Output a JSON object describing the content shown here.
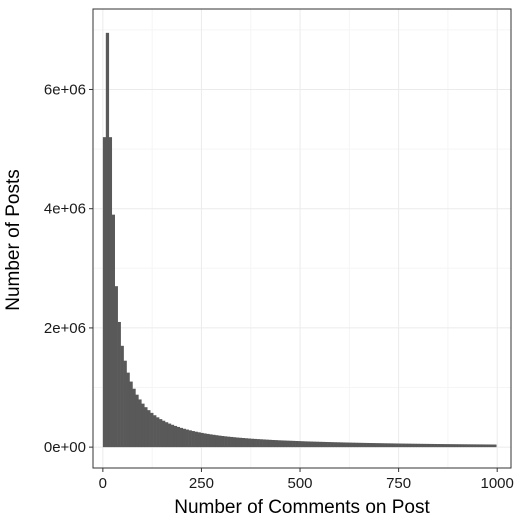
{
  "chart_data": {
    "type": "bar",
    "title": "",
    "xlabel": "Number of Comments on Post",
    "ylabel": "Number of Posts",
    "xlim": [
      -25,
      1035
    ],
    "ylim": [
      -350000,
      7350000
    ],
    "x_ticks": [
      0,
      250,
      500,
      750,
      1000
    ],
    "x_tick_labels": [
      "0",
      "250",
      "500",
      "750",
      "1000"
    ],
    "y_ticks": [
      0,
      2000000,
      4000000,
      6000000
    ],
    "y_tick_labels": [
      "0e+00",
      "2e+06",
      "4e+06",
      "6e+06"
    ],
    "bin_width": 7.5,
    "x": [
      3.75,
      11.25,
      18.75,
      26.25,
      33.75,
      41.25,
      48.75,
      56.25,
      63.75,
      71.25,
      78.75,
      86.25,
      93.75,
      101.25,
      108.75,
      116.25,
      123.75,
      131.25,
      138.75,
      146.25,
      153.75,
      161.25,
      168.75,
      176.25,
      183.75,
      191.25,
      198.75,
      206.25,
      213.75,
      221.25,
      228.75,
      236.25,
      243.75,
      251.25,
      258.75,
      266.25,
      273.75,
      281.25,
      288.75,
      296.25,
      303.75,
      311.25,
      318.75,
      326.25,
      333.75,
      341.25,
      348.75,
      356.25,
      363.75,
      371.25,
      378.75,
      386.25,
      393.75,
      401.25,
      408.75,
      416.25,
      423.75,
      431.25,
      438.75,
      446.25,
      453.75,
      461.25,
      468.75,
      476.25,
      483.75,
      491.25,
      498.75,
      506.25,
      513.75,
      521.25,
      528.75,
      536.25,
      543.75,
      551.25,
      558.75,
      566.25,
      573.75,
      581.25,
      588.75,
      596.25,
      603.75,
      611.25,
      618.75,
      626.25,
      633.75,
      641.25,
      648.75,
      656.25,
      663.75,
      671.25,
      678.75,
      686.25,
      693.75,
      701.25,
      708.75,
      716.25,
      723.75,
      731.25,
      738.75,
      746.25,
      753.75,
      761.25,
      768.75,
      776.25,
      783.75,
      791.25,
      798.75,
      806.25,
      813.75,
      821.25,
      828.75,
      836.25,
      843.75,
      851.25,
      858.75,
      866.25,
      873.75,
      881.25,
      888.75,
      896.25,
      903.75,
      911.25,
      918.75,
      926.25,
      933.75,
      941.25,
      948.75,
      956.25,
      963.75,
      971.25,
      978.75,
      986.25,
      993.75
    ],
    "values": [
      5200000,
      6950000,
      5200000,
      3900000,
      2700000,
      2100000,
      1700000,
      1450000,
      1250000,
      1100000,
      980000,
      880000,
      800000,
      730000,
      670000,
      620000,
      575000,
      535000,
      500000,
      470000,
      443000,
      418000,
      395000,
      375000,
      356000,
      339000,
      323000,
      308000,
      295000,
      282000,
      270000,
      259000,
      249000,
      239000,
      230000,
      222000,
      214000,
      207000,
      200000,
      193000,
      187000,
      181000,
      176000,
      171000,
      166000,
      161000,
      157000,
      153000,
      149000,
      145000,
      141000,
      138000,
      135000,
      132000,
      129000,
      126000,
      123000,
      120000,
      118000,
      115000,
      113000,
      111000,
      109000,
      107000,
      105000,
      103000,
      101000,
      99000,
      97000,
      95500,
      94000,
      92500,
      91000,
      89500,
      88000,
      86600,
      85200,
      83800,
      82500,
      81200,
      80000,
      78800,
      77600,
      76400,
      75300,
      74200,
      73100,
      72100,
      71100,
      70100,
      69100,
      68200,
      67300,
      66400,
      65500,
      64600,
      63800,
      63000,
      62200,
      61400,
      60600,
      59900,
      59200,
      58500,
      57800,
      57100,
      56400,
      55800,
      55200,
      54600,
      54000,
      53400,
      52800,
      52200,
      51700,
      51200,
      50700,
      50200,
      49700,
      49200,
      48700,
      48200,
      47800,
      47400,
      47000,
      46600,
      46200,
      45800,
      45400,
      45000,
      44600,
      44200,
      43800
    ],
    "bar_color": "#595959",
    "panel_background": "#ffffff",
    "panel_border_color": "#333333",
    "grid_major_color": "#ebebeb",
    "grid_minor_color": "#f5f5f5",
    "grid": true,
    "legend": "none"
  }
}
